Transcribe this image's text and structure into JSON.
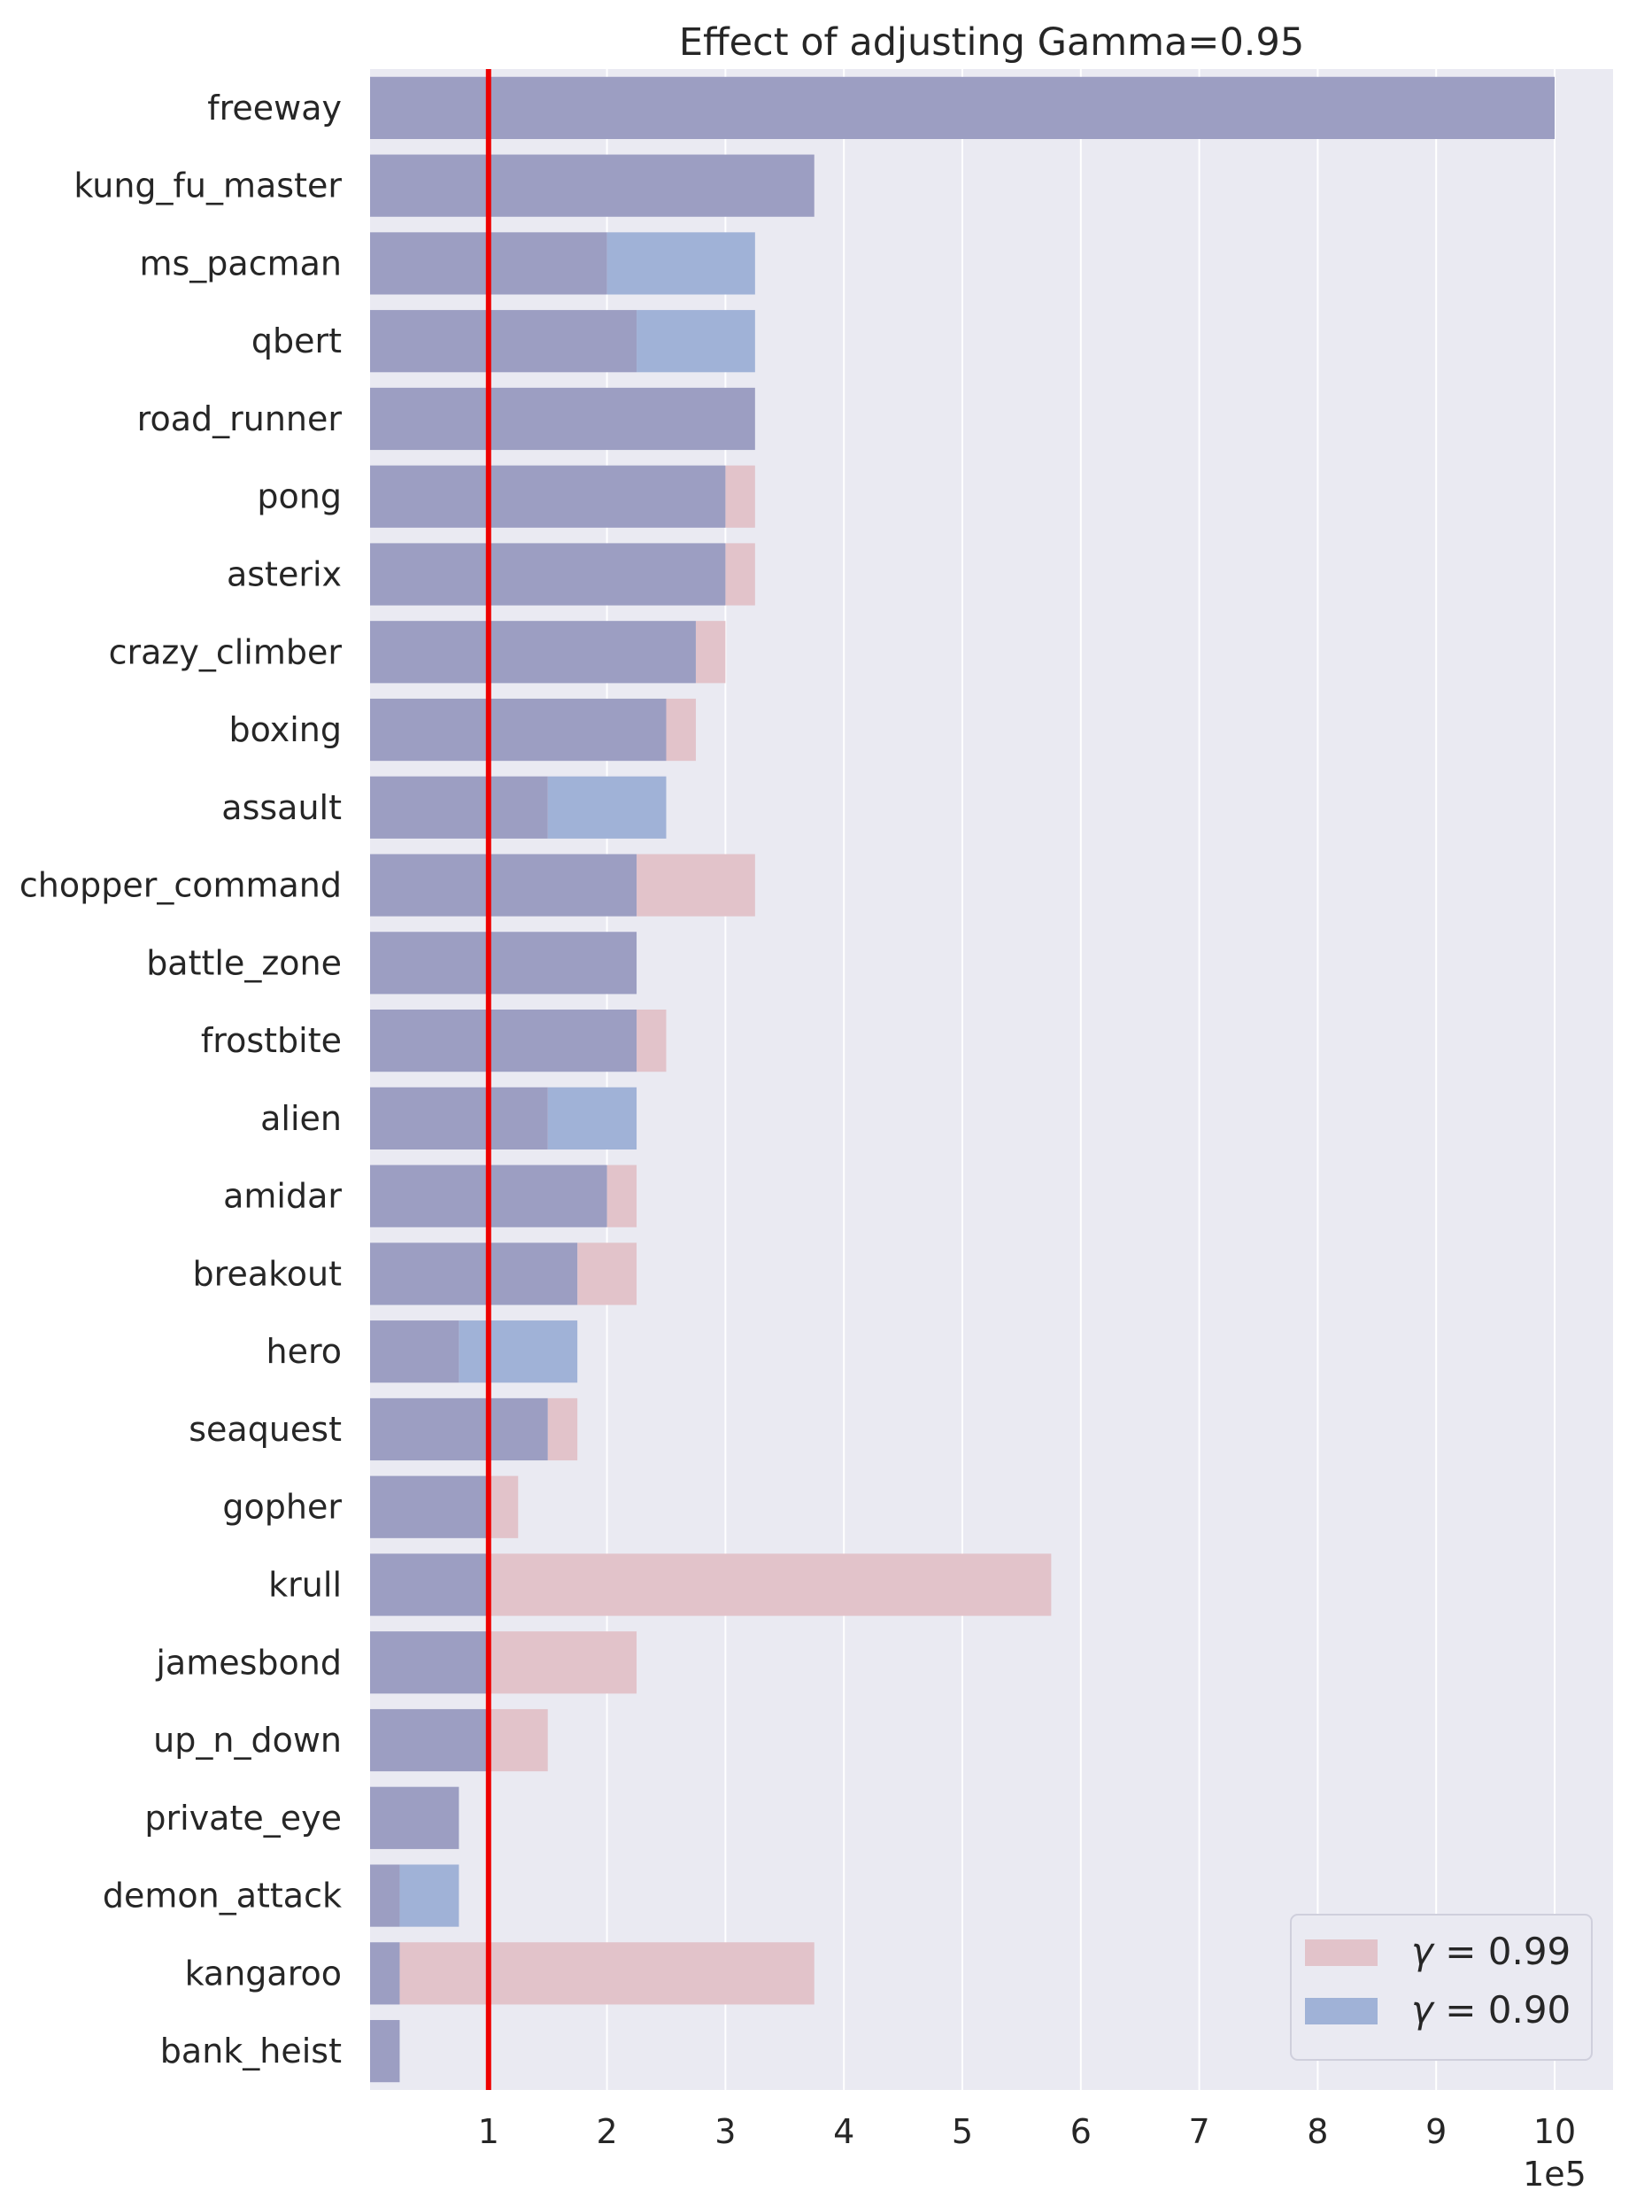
{
  "chart_data": {
    "type": "bar",
    "orientation": "horizontal",
    "title": "Effect of adjusting Gamma=0.95",
    "xlabel": "",
    "ylabel": "",
    "x_scale_label": "1e5",
    "xlim": [
      0,
      10.5
    ],
    "xticks": [
      1,
      2,
      3,
      4,
      5,
      6,
      7,
      8,
      9,
      10
    ],
    "xtick_labels": [
      "1",
      "2",
      "3",
      "4",
      "5",
      "6",
      "7",
      "8",
      "9",
      "10"
    ],
    "grid": true,
    "legend_position": "bottom-right",
    "reference_line": {
      "x": 1,
      "color": "#ee0000"
    },
    "categories": [
      "freeway",
      "kung_fu_master",
      "ms_pacman",
      "qbert",
      "road_runner",
      "pong",
      "asterix",
      "crazy_climber",
      "boxing",
      "assault",
      "chopper_command",
      "battle_zone",
      "frostbite",
      "alien",
      "amidar",
      "breakout",
      "hero",
      "seaquest",
      "gopher",
      "krull",
      "jamesbond",
      "up_n_down",
      "private_eye",
      "demon_attack",
      "kangaroo",
      "bank_heist"
    ],
    "series": [
      {
        "name": "γ = 0.99",
        "legend_symbol": "γ",
        "legend_value": "= 0.99",
        "color": "#e2c3ca",
        "values": [
          10,
          3.75,
          2,
          2.25,
          3.25,
          3.25,
          3.25,
          3,
          2.75,
          1.5,
          3.25,
          2.25,
          2.5,
          1.5,
          2.25,
          2.25,
          0.75,
          1.75,
          1.25,
          5.75,
          2.25,
          1.5,
          0.75,
          0.25,
          3.75,
          0.25
        ]
      },
      {
        "name": "γ = 0.90",
        "legend_symbol": "γ",
        "legend_value": "= 0.90",
        "color": "#a0b2d7",
        "values": [
          10,
          3.75,
          3.25,
          3.25,
          3.25,
          3,
          3,
          2.75,
          2.5,
          2.5,
          2.25,
          2.25,
          2.25,
          2.25,
          2,
          1.75,
          1.75,
          1.5,
          1,
          1,
          1,
          1,
          0.75,
          0.75,
          0.25,
          0.25
        ]
      }
    ],
    "overlap_color": "#9c9ec2",
    "background_color": "#eaeaf2"
  }
}
